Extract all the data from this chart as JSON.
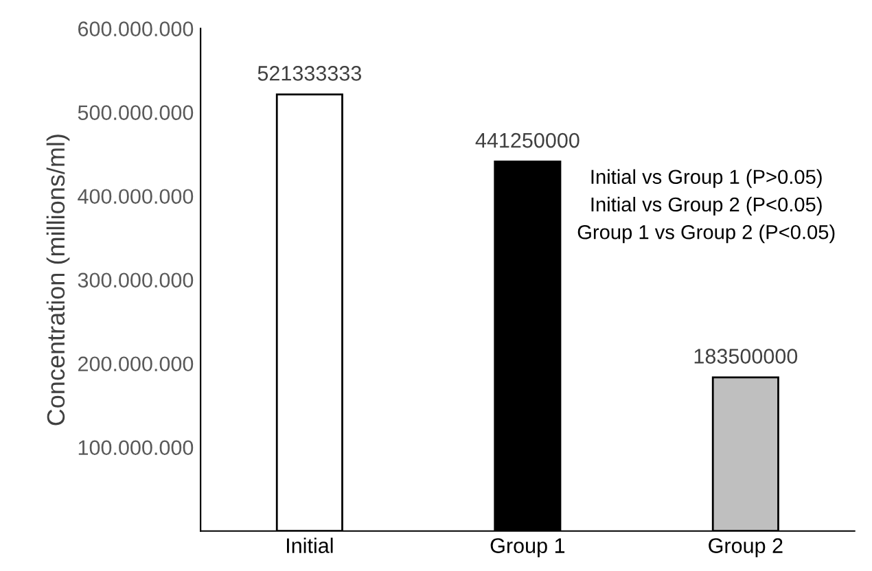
{
  "chart_data": {
    "type": "bar",
    "ylabel": "Concentration (millions/ml)",
    "categories": [
      "Initial",
      "Group 1",
      "Group 2"
    ],
    "values": [
      521333333,
      441250000,
      183500000
    ],
    "colors": [
      "#ffffff",
      "#000000",
      "#bfbfbf"
    ],
    "data_labels": true,
    "ylim": [
      0,
      600000000
    ],
    "yticks": [
      {
        "value": 100000000,
        "label": "100.000.000"
      },
      {
        "value": 200000000,
        "label": "200.000.000"
      },
      {
        "value": 300000000,
        "label": "300.000.000"
      },
      {
        "value": 400000000,
        "label": "400.000.000"
      },
      {
        "value": 500000000,
        "label": "500.000.000"
      },
      {
        "value": 600000000,
        "label": "600.000.000"
      }
    ],
    "grid": false,
    "legend": false,
    "annotations": [
      "Initial vs Group 1 (P>0.05)",
      "Initial vs Group 2 (P<0.05)",
      "Group 1 vs Group 2 (P<0.05)"
    ]
  }
}
